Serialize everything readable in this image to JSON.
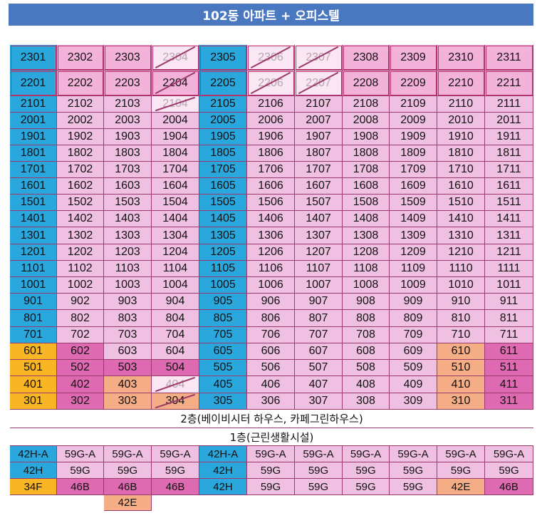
{
  "title": "102동 아파트 + 오피스텔",
  "colors": {
    "blue": "#2aa7dd",
    "pink": "#f0c0e2",
    "mid_pink": "#f3b2da",
    "hot_pink": "#de6ab2",
    "orange": "#f4ad85",
    "yellow": "#f8b624",
    "faded": "#fbe6f4",
    "white": "#ffffff"
  },
  "upper_rows": [
    {
      "cells": [
        [
          "2301",
          "blue"
        ],
        [
          "2302",
          "mid_pink"
        ],
        [
          "2303",
          "mid_pink"
        ],
        [
          "2304",
          "faded",
          1
        ],
        [
          "2305",
          "blue"
        ],
        [
          "2306",
          "faded",
          1
        ],
        [
          "2307",
          "faded",
          1
        ],
        [
          "2308",
          "mid_pink"
        ],
        [
          "2309",
          "mid_pink"
        ],
        [
          "2310",
          "mid_pink"
        ],
        [
          "2311",
          "mid_pink"
        ]
      ]
    },
    {
      "cells": [
        [
          "2201",
          "blue"
        ],
        [
          "2202",
          "mid_pink"
        ],
        [
          "2203",
          "mid_pink"
        ],
        [
          "2204",
          "mid_pink",
          1
        ],
        [
          "2205",
          "blue"
        ],
        [
          "2206",
          "faded",
          1
        ],
        [
          "2207",
          "faded",
          1
        ],
        [
          "2208",
          "mid_pink"
        ],
        [
          "2209",
          "mid_pink"
        ],
        [
          "2210",
          "mid_pink"
        ],
        [
          "2211",
          "mid_pink"
        ]
      ]
    },
    {
      "cells": [
        [
          "2101",
          "blue"
        ],
        [
          "2102",
          "pink"
        ],
        [
          "2103",
          "pink"
        ],
        [
          "2104",
          "faded",
          1
        ],
        [
          "2105",
          "blue"
        ],
        [
          "2106",
          "pink"
        ],
        [
          "2107",
          "pink"
        ],
        [
          "2108",
          "pink"
        ],
        [
          "2109",
          "pink"
        ],
        [
          "2110",
          "pink"
        ],
        [
          "2111",
          "pink"
        ]
      ]
    },
    {
      "cells": [
        [
          "2001",
          "blue"
        ],
        [
          "2002",
          "pink"
        ],
        [
          "2003",
          "pink"
        ],
        [
          "2004",
          "pink"
        ],
        [
          "2005",
          "blue"
        ],
        [
          "2006",
          "pink"
        ],
        [
          "2007",
          "pink"
        ],
        [
          "2008",
          "pink"
        ],
        [
          "2009",
          "pink"
        ],
        [
          "2010",
          "pink"
        ],
        [
          "2011",
          "pink"
        ]
      ]
    },
    {
      "cells": [
        [
          "1901",
          "blue"
        ],
        [
          "1902",
          "pink"
        ],
        [
          "1903",
          "pink"
        ],
        [
          "1904",
          "pink"
        ],
        [
          "1905",
          "blue"
        ],
        [
          "1906",
          "pink"
        ],
        [
          "1907",
          "pink"
        ],
        [
          "1908",
          "pink"
        ],
        [
          "1909",
          "pink"
        ],
        [
          "1910",
          "pink"
        ],
        [
          "1911",
          "pink"
        ]
      ]
    },
    {
      "cells": [
        [
          "1801",
          "blue"
        ],
        [
          "1802",
          "pink"
        ],
        [
          "1803",
          "pink"
        ],
        [
          "1804",
          "pink"
        ],
        [
          "1805",
          "blue"
        ],
        [
          "1806",
          "pink"
        ],
        [
          "1807",
          "pink"
        ],
        [
          "1808",
          "pink"
        ],
        [
          "1809",
          "pink"
        ],
        [
          "1810",
          "pink"
        ],
        [
          "1811",
          "pink"
        ]
      ]
    },
    {
      "cells": [
        [
          "1701",
          "blue"
        ],
        [
          "1702",
          "pink"
        ],
        [
          "1703",
          "pink"
        ],
        [
          "1704",
          "pink"
        ],
        [
          "1705",
          "blue"
        ],
        [
          "1706",
          "pink"
        ],
        [
          "1707",
          "pink"
        ],
        [
          "1708",
          "pink"
        ],
        [
          "1709",
          "pink"
        ],
        [
          "1710",
          "pink"
        ],
        [
          "1711",
          "pink"
        ]
      ]
    },
    {
      "cells": [
        [
          "1601",
          "blue"
        ],
        [
          "1602",
          "pink"
        ],
        [
          "1603",
          "pink"
        ],
        [
          "1604",
          "pink"
        ],
        [
          "1605",
          "blue"
        ],
        [
          "1606",
          "pink"
        ],
        [
          "1607",
          "pink"
        ],
        [
          "1608",
          "pink"
        ],
        [
          "1609",
          "pink"
        ],
        [
          "1610",
          "pink"
        ],
        [
          "1611",
          "pink"
        ]
      ]
    },
    {
      "cells": [
        [
          "1501",
          "blue"
        ],
        [
          "1502",
          "pink"
        ],
        [
          "1503",
          "pink"
        ],
        [
          "1504",
          "pink"
        ],
        [
          "1505",
          "blue"
        ],
        [
          "1506",
          "pink"
        ],
        [
          "1507",
          "pink"
        ],
        [
          "1508",
          "pink"
        ],
        [
          "1509",
          "pink"
        ],
        [
          "1510",
          "pink"
        ],
        [
          "1511",
          "pink"
        ]
      ]
    },
    {
      "cells": [
        [
          "1401",
          "blue"
        ],
        [
          "1402",
          "pink"
        ],
        [
          "1403",
          "pink"
        ],
        [
          "1404",
          "pink"
        ],
        [
          "1405",
          "blue"
        ],
        [
          "1406",
          "pink"
        ],
        [
          "1407",
          "pink"
        ],
        [
          "1408",
          "pink"
        ],
        [
          "1409",
          "pink"
        ],
        [
          "1410",
          "pink"
        ],
        [
          "1411",
          "pink"
        ]
      ]
    },
    {
      "cells": [
        [
          "1301",
          "blue"
        ],
        [
          "1302",
          "pink"
        ],
        [
          "1303",
          "pink"
        ],
        [
          "1304",
          "pink"
        ],
        [
          "1305",
          "blue"
        ],
        [
          "1306",
          "pink"
        ],
        [
          "1307",
          "pink"
        ],
        [
          "1308",
          "pink"
        ],
        [
          "1309",
          "pink"
        ],
        [
          "1310",
          "pink"
        ],
        [
          "1311",
          "pink"
        ]
      ]
    },
    {
      "cells": [
        [
          "1201",
          "blue"
        ],
        [
          "1202",
          "pink"
        ],
        [
          "1203",
          "pink"
        ],
        [
          "1204",
          "pink"
        ],
        [
          "1205",
          "blue"
        ],
        [
          "1206",
          "pink"
        ],
        [
          "1207",
          "pink"
        ],
        [
          "1208",
          "pink"
        ],
        [
          "1209",
          "pink"
        ],
        [
          "1210",
          "pink"
        ],
        [
          "1211",
          "pink"
        ]
      ]
    },
    {
      "cells": [
        [
          "1101",
          "blue"
        ],
        [
          "1102",
          "pink"
        ],
        [
          "1103",
          "pink"
        ],
        [
          "1104",
          "pink"
        ],
        [
          "1105",
          "blue"
        ],
        [
          "1106",
          "pink"
        ],
        [
          "1107",
          "pink"
        ],
        [
          "1108",
          "pink"
        ],
        [
          "1109",
          "pink"
        ],
        [
          "1110",
          "pink"
        ],
        [
          "1111",
          "pink"
        ]
      ]
    },
    {
      "cells": [
        [
          "1001",
          "blue"
        ],
        [
          "1002",
          "pink"
        ],
        [
          "1003",
          "pink"
        ],
        [
          "1004",
          "pink"
        ],
        [
          "1005",
          "blue"
        ],
        [
          "1006",
          "pink"
        ],
        [
          "1007",
          "pink"
        ],
        [
          "1008",
          "pink"
        ],
        [
          "1009",
          "pink"
        ],
        [
          "1010",
          "pink"
        ],
        [
          "1011",
          "pink"
        ]
      ]
    },
    {
      "cells": [
        [
          "901",
          "blue"
        ],
        [
          "902",
          "pink"
        ],
        [
          "903",
          "pink"
        ],
        [
          "904",
          "pink"
        ],
        [
          "905",
          "blue"
        ],
        [
          "906",
          "pink"
        ],
        [
          "907",
          "pink"
        ],
        [
          "908",
          "pink"
        ],
        [
          "909",
          "pink"
        ],
        [
          "910",
          "pink"
        ],
        [
          "911",
          "pink"
        ]
      ]
    },
    {
      "cells": [
        [
          "801",
          "blue"
        ],
        [
          "802",
          "pink"
        ],
        [
          "803",
          "pink"
        ],
        [
          "804",
          "pink"
        ],
        [
          "805",
          "blue"
        ],
        [
          "806",
          "pink"
        ],
        [
          "807",
          "pink"
        ],
        [
          "808",
          "pink"
        ],
        [
          "809",
          "pink"
        ],
        [
          "810",
          "pink"
        ],
        [
          "811",
          "pink"
        ]
      ]
    },
    {
      "cells": [
        [
          "701",
          "blue"
        ],
        [
          "702",
          "pink"
        ],
        [
          "703",
          "pink"
        ],
        [
          "704",
          "pink"
        ],
        [
          "705",
          "blue"
        ],
        [
          "706",
          "pink"
        ],
        [
          "707",
          "pink"
        ],
        [
          "708",
          "pink"
        ],
        [
          "709",
          "pink"
        ],
        [
          "710",
          "pink"
        ],
        [
          "711",
          "pink"
        ]
      ]
    },
    {
      "cells": [
        [
          "601",
          "yellow"
        ],
        [
          "602",
          "hot_pink"
        ],
        [
          "603",
          "pink"
        ],
        [
          "604",
          "pink"
        ],
        [
          "605",
          "blue"
        ],
        [
          "606",
          "pink"
        ],
        [
          "607",
          "pink"
        ],
        [
          "608",
          "pink"
        ],
        [
          "609",
          "pink"
        ],
        [
          "610",
          "orange"
        ],
        [
          "611",
          "hot_pink"
        ]
      ]
    },
    {
      "cells": [
        [
          "501",
          "yellow"
        ],
        [
          "502",
          "hot_pink"
        ],
        [
          "503",
          "hot_pink"
        ],
        [
          "504",
          "hot_pink"
        ],
        [
          "505",
          "blue"
        ],
        [
          "506",
          "pink"
        ],
        [
          "507",
          "pink"
        ],
        [
          "508",
          "pink"
        ],
        [
          "509",
          "pink"
        ],
        [
          "510",
          "orange"
        ],
        [
          "511",
          "hot_pink"
        ]
      ]
    },
    {
      "cells": [
        [
          "401",
          "yellow"
        ],
        [
          "402",
          "hot_pink"
        ],
        [
          "403",
          "orange"
        ],
        [
          "404",
          "faded",
          1
        ],
        [
          "405",
          "blue"
        ],
        [
          "406",
          "pink"
        ],
        [
          "407",
          "pink"
        ],
        [
          "408",
          "pink"
        ],
        [
          "409",
          "pink"
        ],
        [
          "410",
          "orange"
        ],
        [
          "411",
          "hot_pink"
        ]
      ]
    },
    {
      "cells": [
        [
          "301",
          "yellow"
        ],
        [
          "302",
          "hot_pink"
        ],
        [
          "303",
          "orange"
        ],
        [
          "304",
          "orange",
          1
        ],
        [
          "305",
          "blue"
        ],
        [
          "306",
          "pink"
        ],
        [
          "307",
          "pink"
        ],
        [
          "308",
          "pink"
        ],
        [
          "309",
          "pink"
        ],
        [
          "310",
          "orange"
        ],
        [
          "311",
          "hot_pink"
        ]
      ]
    }
  ],
  "floor2_label": "2층(베이비시터 하우스, 카페그린하우스)",
  "floor1_label": "1층(근린생활시설)",
  "unit_rows": [
    {
      "cells": [
        [
          "42H-A",
          "blue"
        ],
        [
          "59G-A",
          "pink"
        ],
        [
          "59G-A",
          "pink"
        ],
        [
          "59G-A",
          "pink"
        ],
        [
          "42H-A",
          "blue"
        ],
        [
          "59G-A",
          "pink"
        ],
        [
          "59G-A",
          "pink"
        ],
        [
          "59G-A",
          "pink"
        ],
        [
          "59G-A",
          "pink"
        ],
        [
          "59G-A",
          "pink"
        ],
        [
          "59G-A",
          "pink"
        ]
      ]
    },
    {
      "cells": [
        [
          "42H",
          "blue"
        ],
        [
          "59G",
          "pink"
        ],
        [
          "59G",
          "pink"
        ],
        [
          "59G",
          "pink"
        ],
        [
          "42H",
          "blue"
        ],
        [
          "59G",
          "pink"
        ],
        [
          "59G",
          "pink"
        ],
        [
          "59G",
          "pink"
        ],
        [
          "59G",
          "pink"
        ],
        [
          "59G",
          "pink"
        ],
        [
          "59G",
          "pink"
        ]
      ]
    },
    {
      "cells": [
        [
          "34F",
          "yellow"
        ],
        [
          "46B",
          "hot_pink"
        ],
        [
          "46B",
          "hot_pink"
        ],
        [
          "46B",
          "hot_pink"
        ],
        [
          "42H",
          "blue"
        ],
        [
          "59G",
          "pink"
        ],
        [
          "59G",
          "pink"
        ],
        [
          "59G",
          "pink"
        ],
        [
          "59G",
          "pink"
        ],
        [
          "42E",
          "orange"
        ],
        [
          "46B",
          "hot_pink"
        ]
      ]
    },
    {
      "cells": [
        [
          "",
          "white"
        ],
        [
          "",
          "white"
        ],
        [
          "42E",
          "orange"
        ],
        [
          "",
          "white"
        ],
        [
          "",
          "white"
        ],
        [
          "",
          "white"
        ],
        [
          "",
          "white"
        ],
        [
          "",
          "white"
        ],
        [
          "",
          "white"
        ],
        [
          "",
          "white"
        ],
        [
          "",
          "white"
        ]
      ]
    }
  ]
}
